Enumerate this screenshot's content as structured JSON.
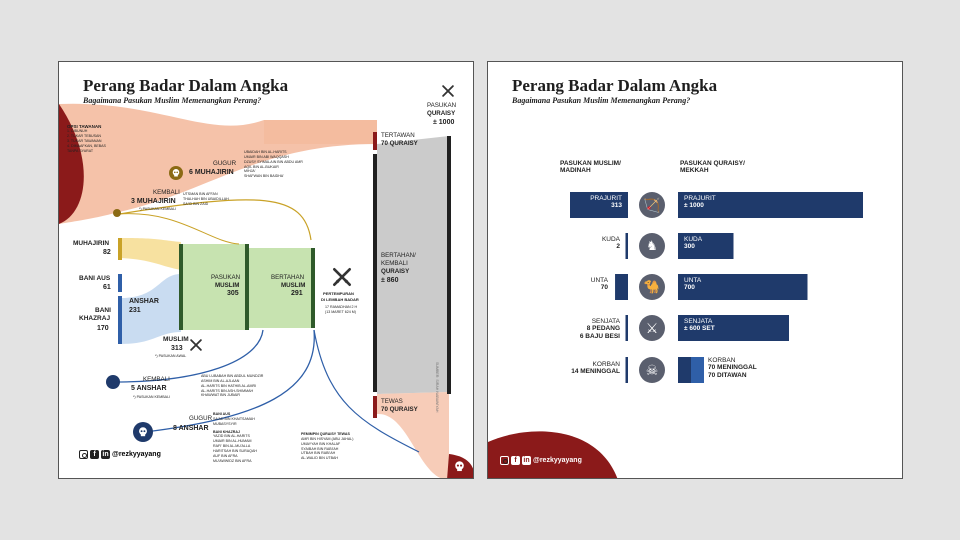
{
  "title": "Perang Badar Dalam Angka",
  "subtitle": "Bagaimana Pasukan Muslim Memenangkan Perang?",
  "social_handle": "@rezkyyayang",
  "colors": {
    "navy": "#1f3a6b",
    "blue": "#2f5fa8",
    "darkred": "#8b1a1a",
    "salmon": "#f3b79a",
    "yellow": "#f7e1a0",
    "green": "#c7e3b0",
    "darkgreen": "#2f5a2a",
    "gray": "#cbcbcb",
    "black": "#202020"
  },
  "left": {
    "opsi_title": "OPSI TAWANAN",
    "opsi_items": [
      "1. DIBUNUH",
      "2. TUKAR TEBUSAN",
      "3. TUKAR TAWANAN",
      "4. DIMAAFKAN, BEBAS",
      "TANPA SYARAT"
    ],
    "gugur1_label": "GUGUR",
    "gugur1_value": "6 MUHAJIRIN",
    "gugur1_names": [
      "UBAIDAH BIN AL-HARITS",
      "UMAIR BIN ABI WAQQASH",
      "DZUSY SYIMALAIN BIN ABDU AMR",
      "AQIL BIN AL-BUKAIR",
      "MIHJA'",
      "SHAFWAN BIN BAIDHA'"
    ],
    "kembali1_label": "KEMBALI",
    "kembali1_value": "3 MUHAJIRIN",
    "kembali1_note": "*) PASUKAN KEMBALI",
    "kembali1_names": [
      "UTSMAN BIN AFFAN",
      "THALHAH BIN UBAIDILLAH",
      "SA'ID BIN ZAID"
    ],
    "muhajirin_label": "MUHAJIRIN",
    "muhajirin_value": "82",
    "baniaus_label": "BANI AUS",
    "baniaus_value": "61",
    "banikhazraj_label1": "BANI",
    "banikhazraj_label2": "KHAZRAJ",
    "banikhazraj_value": "170",
    "anshar_label": "ANSHAR",
    "anshar_value": "231",
    "muslim_label": "MUSLIM",
    "muslim_value": "313",
    "muslim_note": "*) PASUKAN AWAL",
    "pasukan_muslim_label1": "PASUKAN",
    "pasukan_muslim_label2": "MUSLIM",
    "pasukan_muslim_value": "305",
    "bertahan_label": "BERTAHAN",
    "bertahan_label2": "MUSLIM",
    "bertahan_value": "291",
    "pertempuran_label1": "PERTEMPURAN",
    "pertempuran_label2": "DI LEMBAH BADAR",
    "pertempuran_date1": "17 RAMADHAN 2 H",
    "pertempuran_date2": "(13 MARET 624 M)",
    "kembali2_label": "KEMBALI",
    "kembali2_value": "5 ANSHAR",
    "kembali2_note": "*) PASUKAN KEMBALI",
    "kembali2_names": [
      "ABU LUBABAH BIN ABDUL MUNDZIR",
      "ASHIM BIN AL-AJLAAN",
      "AL-HARITS BIN HATHIB AL-AMRI",
      "AL-HARITS BIN ASH-SHIMMAH",
      "KHAWWAT BIN JUBAIR"
    ],
    "gugur2_label": "GUGUR",
    "gugur2_value": "8 ANSHAR",
    "gugur2_aus": "BANI AUS",
    "gugur2_aus_names": [
      "SA'AD BIN KHAITSAMAH",
      "MUBASYSYIR"
    ],
    "gugur2_khazraj": "BANI KHAZRAJ",
    "gugur2_khazraj_names": [
      "YAZID BIN AL-HARITS",
      "UMAIR BIN AL-HUMAM",
      "RAFI' BIN AL-MU'ALLA",
      "HARITSAH BIN SURAQAH",
      "AUF BIN AFRA",
      "MU'AWWIDZ BIN AFRA"
    ],
    "pasukan_quraisy_label1": "PASUKAN",
    "pasukan_quraisy_label2": "QURAISY",
    "pasukan_quraisy_value": "± 1000",
    "tertawan_label": "TERTAWAN",
    "tertawan_value": "70 QURAISY",
    "bertahan_q_label1": "BERTAHAN/",
    "bertahan_q_label2": "KEMBALI",
    "bertahan_q_label3": "QURAISY",
    "bertahan_q_value": "± 860",
    "tewas_label": "TEWAS",
    "tewas_value": "70 QURAISY",
    "pemimpin_title": "PEMIMPIN QURAISY TEWAS",
    "pemimpin_names": [
      "AMR BIN HISYAM (ABU JAHAL)",
      "UMAYYAH BIN KHALAF",
      "SYAIBAH BIN RABI'AH",
      "UTBAH BIN RABI'AH",
      "AL-WALID BIN UTBAH"
    ],
    "vertical_note": "SUMBER: SIRAH NABAWIYAH"
  },
  "right": {
    "col_muslim_1": "PASUKAN MUSLIM/",
    "col_muslim_2": "MADINAH",
    "col_quraisy_1": "PASUKAN QURAISY/",
    "col_quraisy_2": "MEKKAH",
    "rows": [
      {
        "icon": "archer-icon",
        "muslim_label": "PRAJURIT",
        "muslim_value": "313",
        "quraisy_label": "PRAJURIT",
        "quraisy_value": "± 1000"
      },
      {
        "icon": "horse-icon",
        "muslim_label": "KUDA",
        "muslim_value": "2",
        "quraisy_label": "KUDA",
        "quraisy_value": "300"
      },
      {
        "icon": "camel-icon",
        "muslim_label": "UNTA",
        "muslim_value": "70",
        "quraisy_label": "UNTA",
        "quraisy_value": "700"
      },
      {
        "icon": "swords-icon",
        "muslim_label": "SENJATA",
        "muslim_value": "8 PEDANG",
        "muslim_value2": "6 BAJU BESI",
        "quraisy_label": "SENJATA",
        "quraisy_value": "± 600 SET"
      },
      {
        "icon": "skull-icon",
        "muslim_label": "KORBAN",
        "muslim_value": "14 MENINGGAL",
        "quraisy_label": "KORBAN",
        "quraisy_value": "70 MENINGGAL",
        "quraisy_value2": "70 DITAWAN"
      }
    ]
  },
  "chart_data": [
    {
      "type": "sankey",
      "title": "Perang Badar Dalam Angka",
      "nodes": [
        "MUHAJIRIN 82",
        "BANI AUS 61",
        "BANI KHAZRAJ 170",
        "ANSHAR 231",
        "MUSLIM 313",
        "PASUKAN MUSLIM 305",
        "BERTAHAN MUSLIM 291",
        "KEMBALI 3 MUHAJIRIN",
        "KEMBALI 5 ANSHAR",
        "GUGUR 6 MUHAJIRIN",
        "GUGUR 8 ANSHAR",
        "PASUKAN QURAISY ± 1000",
        "TERTAWAN 70 QURAISY",
        "BERTAHAN/KEMBALI QURAISY ± 860",
        "TEWAS 70 QURAISY"
      ],
      "links": [
        {
          "source": "BANI AUS",
          "target": "ANSHAR",
          "value": 61
        },
        {
          "source": "BANI KHAZRAJ",
          "target": "ANSHAR",
          "value": 170
        },
        {
          "source": "MUHAJIRIN",
          "target": "PASUKAN MUSLIM",
          "value": 79
        },
        {
          "source": "MUHAJIRIN",
          "target": "KEMBALI 3 MUHAJIRIN",
          "value": 3
        },
        {
          "source": "ANSHAR",
          "target": "PASUKAN MUSLIM",
          "value": 226
        },
        {
          "source": "ANSHAR",
          "target": "KEMBALI 5 ANSHAR",
          "value": 5
        },
        {
          "source": "PASUKAN MUSLIM",
          "target": "BERTAHAN MUSLIM",
          "value": 291
        },
        {
          "source": "PASUKAN MUSLIM",
          "target": "GUGUR 6 MUHAJIRIN",
          "value": 6
        },
        {
          "source": "PASUKAN MUSLIM",
          "target": "GUGUR 8 ANSHAR",
          "value": 8
        },
        {
          "source": "PASUKAN QURAISY",
          "target": "TERTAWAN",
          "value": 70
        },
        {
          "source": "PASUKAN QURAISY",
          "target": "BERTAHAN/KEMBALI QURAISY",
          "value": 860
        },
        {
          "source": "PASUKAN QURAISY",
          "target": "TEWAS",
          "value": 70
        }
      ]
    },
    {
      "type": "bar",
      "title": "Perang Badar Dalam Angka",
      "categories": [
        "PRAJURIT",
        "KUDA",
        "UNTA",
        "SENJATA",
        "KORBAN"
      ],
      "series": [
        {
          "name": "PASUKAN MUSLIM/ MADINAH",
          "values": [
            313,
            2,
            70,
            14,
            14
          ]
        },
        {
          "name": "PASUKAN QURAISY/ MEKKAH",
          "values": [
            1000,
            300,
            700,
            600,
            140
          ]
        }
      ]
    }
  ]
}
